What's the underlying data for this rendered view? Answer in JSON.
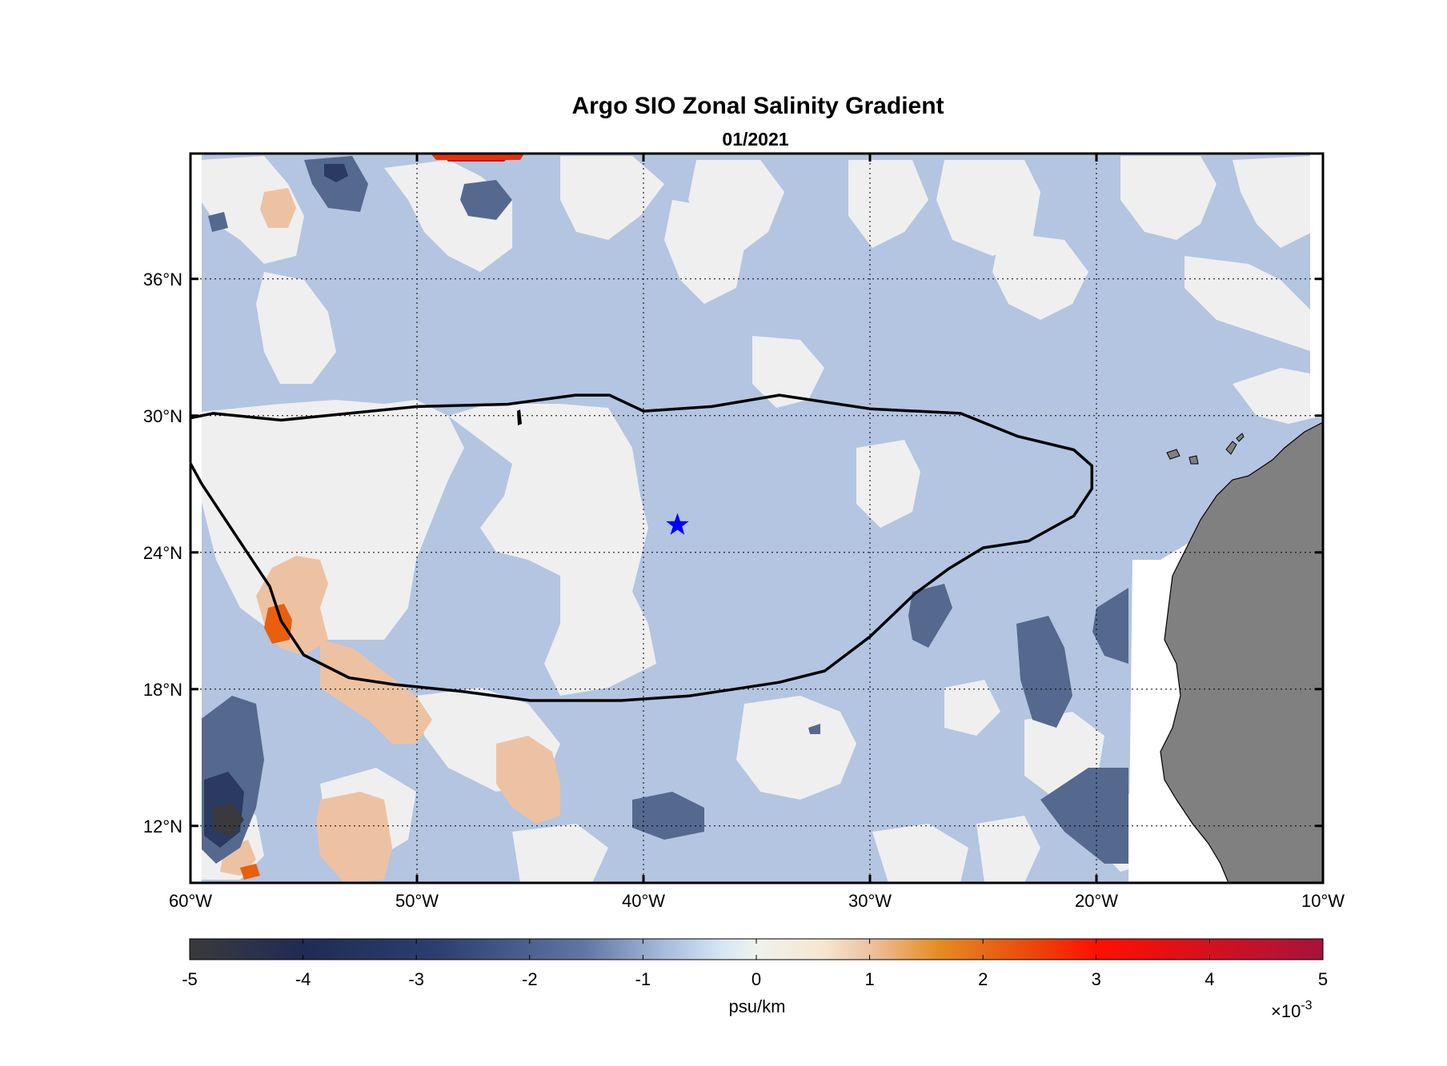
{
  "figure": {
    "title": "Argo SIO Zonal Salinity Gradient",
    "subtitle": "01/2021"
  },
  "map": {
    "lon_range": [
      -60,
      -10
    ],
    "lat_range": [
      9.5,
      41.5
    ],
    "x_ticks": [
      {
        "value": -60,
        "label": "60°W"
      },
      {
        "value": -50,
        "label": "50°W"
      },
      {
        "value": -40,
        "label": "40°W"
      },
      {
        "value": -30,
        "label": "30°W"
      },
      {
        "value": -20,
        "label": "20°W"
      },
      {
        "value": -10,
        "label": "10°W"
      }
    ],
    "y_ticks": [
      {
        "value": 12,
        "label": "12°N"
      },
      {
        "value": 18,
        "label": "18°N"
      },
      {
        "value": 24,
        "label": "24°N"
      },
      {
        "value": 30,
        "label": "30°N"
      },
      {
        "value": 36,
        "label": "36°N"
      }
    ],
    "grid": "dotted",
    "land_color": "#808080",
    "marker": {
      "lon": -38.5,
      "lat": 25.2,
      "shape": "star",
      "color": "#0000ff"
    },
    "gyre_contour": [
      [
        -60,
        29.9
      ],
      [
        -59,
        30.1
      ],
      [
        -56,
        29.8
      ],
      [
        -53,
        30.1
      ],
      [
        -50,
        30.4
      ],
      [
        -46,
        30.5
      ],
      [
        -43,
        30.9
      ],
      [
        -41.5,
        30.9
      ],
      [
        -40,
        30.2
      ],
      [
        -37,
        30.4
      ],
      [
        -34,
        30.9
      ],
      [
        -30,
        30.3
      ],
      [
        -26,
        30.1
      ],
      [
        -23.5,
        29.1
      ],
      [
        -21,
        28.5
      ],
      [
        -20.2,
        27.8
      ],
      [
        -20.2,
        26.8
      ],
      [
        -21,
        25.6
      ],
      [
        -23,
        24.5
      ],
      [
        -25,
        24.2
      ],
      [
        -26.5,
        23.3
      ],
      [
        -28,
        22.2
      ],
      [
        -30,
        20.3
      ],
      [
        -32,
        18.8
      ],
      [
        -34,
        18.3
      ],
      [
        -36,
        18.0
      ],
      [
        -38,
        17.7
      ],
      [
        -41,
        17.5
      ],
      [
        -45,
        17.5
      ],
      [
        -48,
        17.9
      ],
      [
        -51,
        18.2
      ],
      [
        -53,
        18.5
      ],
      [
        -55,
        19.5
      ],
      [
        -56,
        21
      ],
      [
        -56.5,
        22.5
      ],
      [
        -57.5,
        24
      ],
      [
        -58.5,
        25.5
      ],
      [
        -59.5,
        27
      ],
      [
        -60,
        27.9
      ]
    ]
  },
  "colorbar": {
    "label": "psu/km",
    "multiplier": "×10",
    "exponent": "-3",
    "range": [
      -5,
      5
    ],
    "ticks": [
      "-5",
      "-4",
      "-3",
      "-2",
      "-1",
      "0",
      "1",
      "2",
      "3",
      "4",
      "5"
    ],
    "colors": [
      "#3a3a3c",
      "#1e2d5a",
      "#3b4f80",
      "#6a80aa",
      "#b3c6e0",
      "#e8f0f2",
      "#f5e6d0",
      "#e0a070",
      "#e87010",
      "#ff1500",
      "#b0103a"
    ]
  }
}
